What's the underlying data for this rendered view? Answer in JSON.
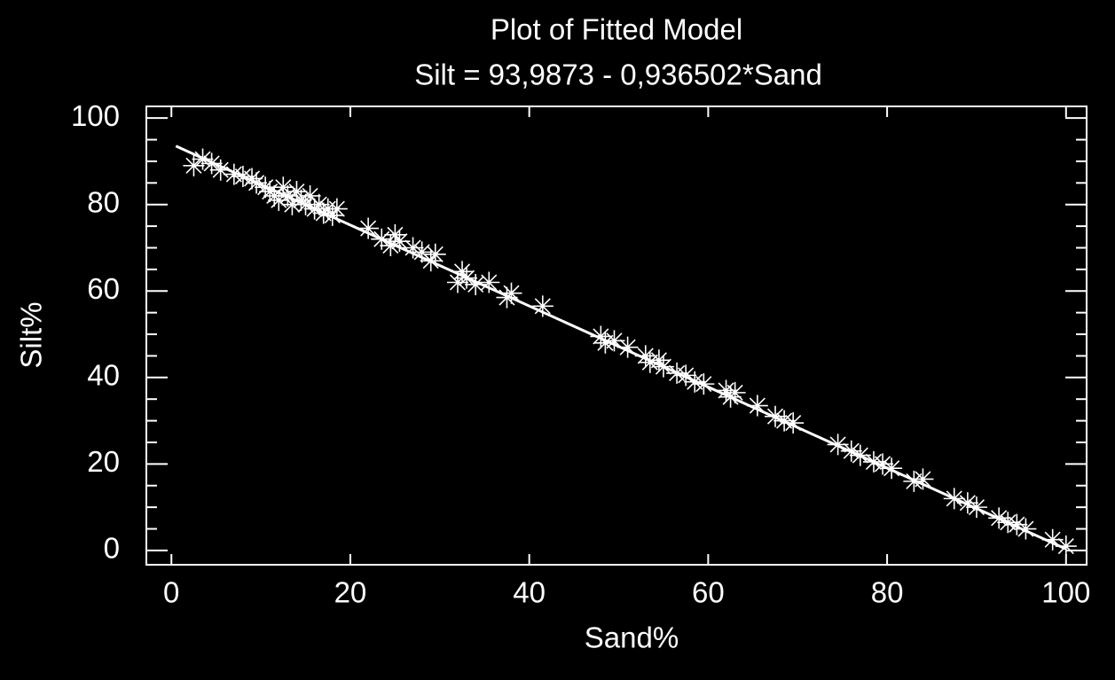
{
  "chart_data": {
    "type": "scatter",
    "title": "Plot of Fitted Model",
    "subtitle": "Silt = 93,9873 - 0,936502*Sand",
    "xlabel": "Sand%",
    "ylabel": "Silt%",
    "xlim": [
      -2.8,
      102.3
    ],
    "ylim": [
      -3.3,
      102.7
    ],
    "xticks": [
      0,
      20,
      40,
      60,
      80,
      100
    ],
    "yticks": [
      0,
      20,
      40,
      60,
      80,
      100
    ],
    "color": "#ffffff",
    "series": [
      {
        "mode": "markers",
        "marker": "asterisk",
        "color": "#ffffff",
        "x": [
          2.5,
          3.5,
          4.5,
          5.5,
          7,
          8,
          9,
          9.5,
          10.5,
          11,
          11.5,
          12,
          12.5,
          13,
          13.5,
          14,
          14.5,
          15,
          15.5,
          16,
          16.5,
          17,
          17.5,
          18,
          18.5,
          22,
          23.5,
          24.5,
          25,
          25.5,
          27,
          28,
          29,
          29.5,
          32,
          32.5,
          33,
          34,
          35.5,
          37.5,
          38,
          41.5,
          48,
          48.5,
          49.5,
          51,
          53,
          53.5,
          54.5,
          55,
          56.5,
          57.5,
          58.5,
          59.5,
          62,
          62.5,
          63,
          65.5,
          67.5,
          68.5,
          69.5,
          74.5,
          76,
          77,
          78.5,
          79.5,
          80.5,
          83,
          84,
          87.5,
          89,
          90,
          92.5,
          93.5,
          94.5,
          95.5,
          98.5,
          100
        ],
        "values": [
          89,
          90.5,
          89.5,
          88,
          87,
          86.5,
          86,
          85,
          84,
          83,
          82,
          81,
          84,
          82,
          80,
          83,
          81,
          80,
          82,
          79,
          80,
          78,
          79,
          77.5,
          79,
          74.5,
          72,
          70.5,
          73,
          71.5,
          70,
          69,
          67,
          68.5,
          62,
          64.5,
          63,
          61.5,
          62,
          58.5,
          59.5,
          56.5,
          49.5,
          48,
          48.5,
          47,
          45,
          43.5,
          44,
          42.5,
          41,
          40.5,
          39,
          38.5,
          37,
          35.5,
          36.5,
          33.5,
          31,
          30,
          29.5,
          24.5,
          23,
          22,
          20.5,
          20,
          19,
          16,
          16.5,
          12,
          11,
          10,
          7.5,
          6.5,
          6,
          5,
          2.5,
          1
        ]
      },
      {
        "mode": "line",
        "color": "#ffffff",
        "x": [
          0.5,
          100
        ],
        "values": [
          93.52,
          0.34
        ]
      }
    ]
  }
}
